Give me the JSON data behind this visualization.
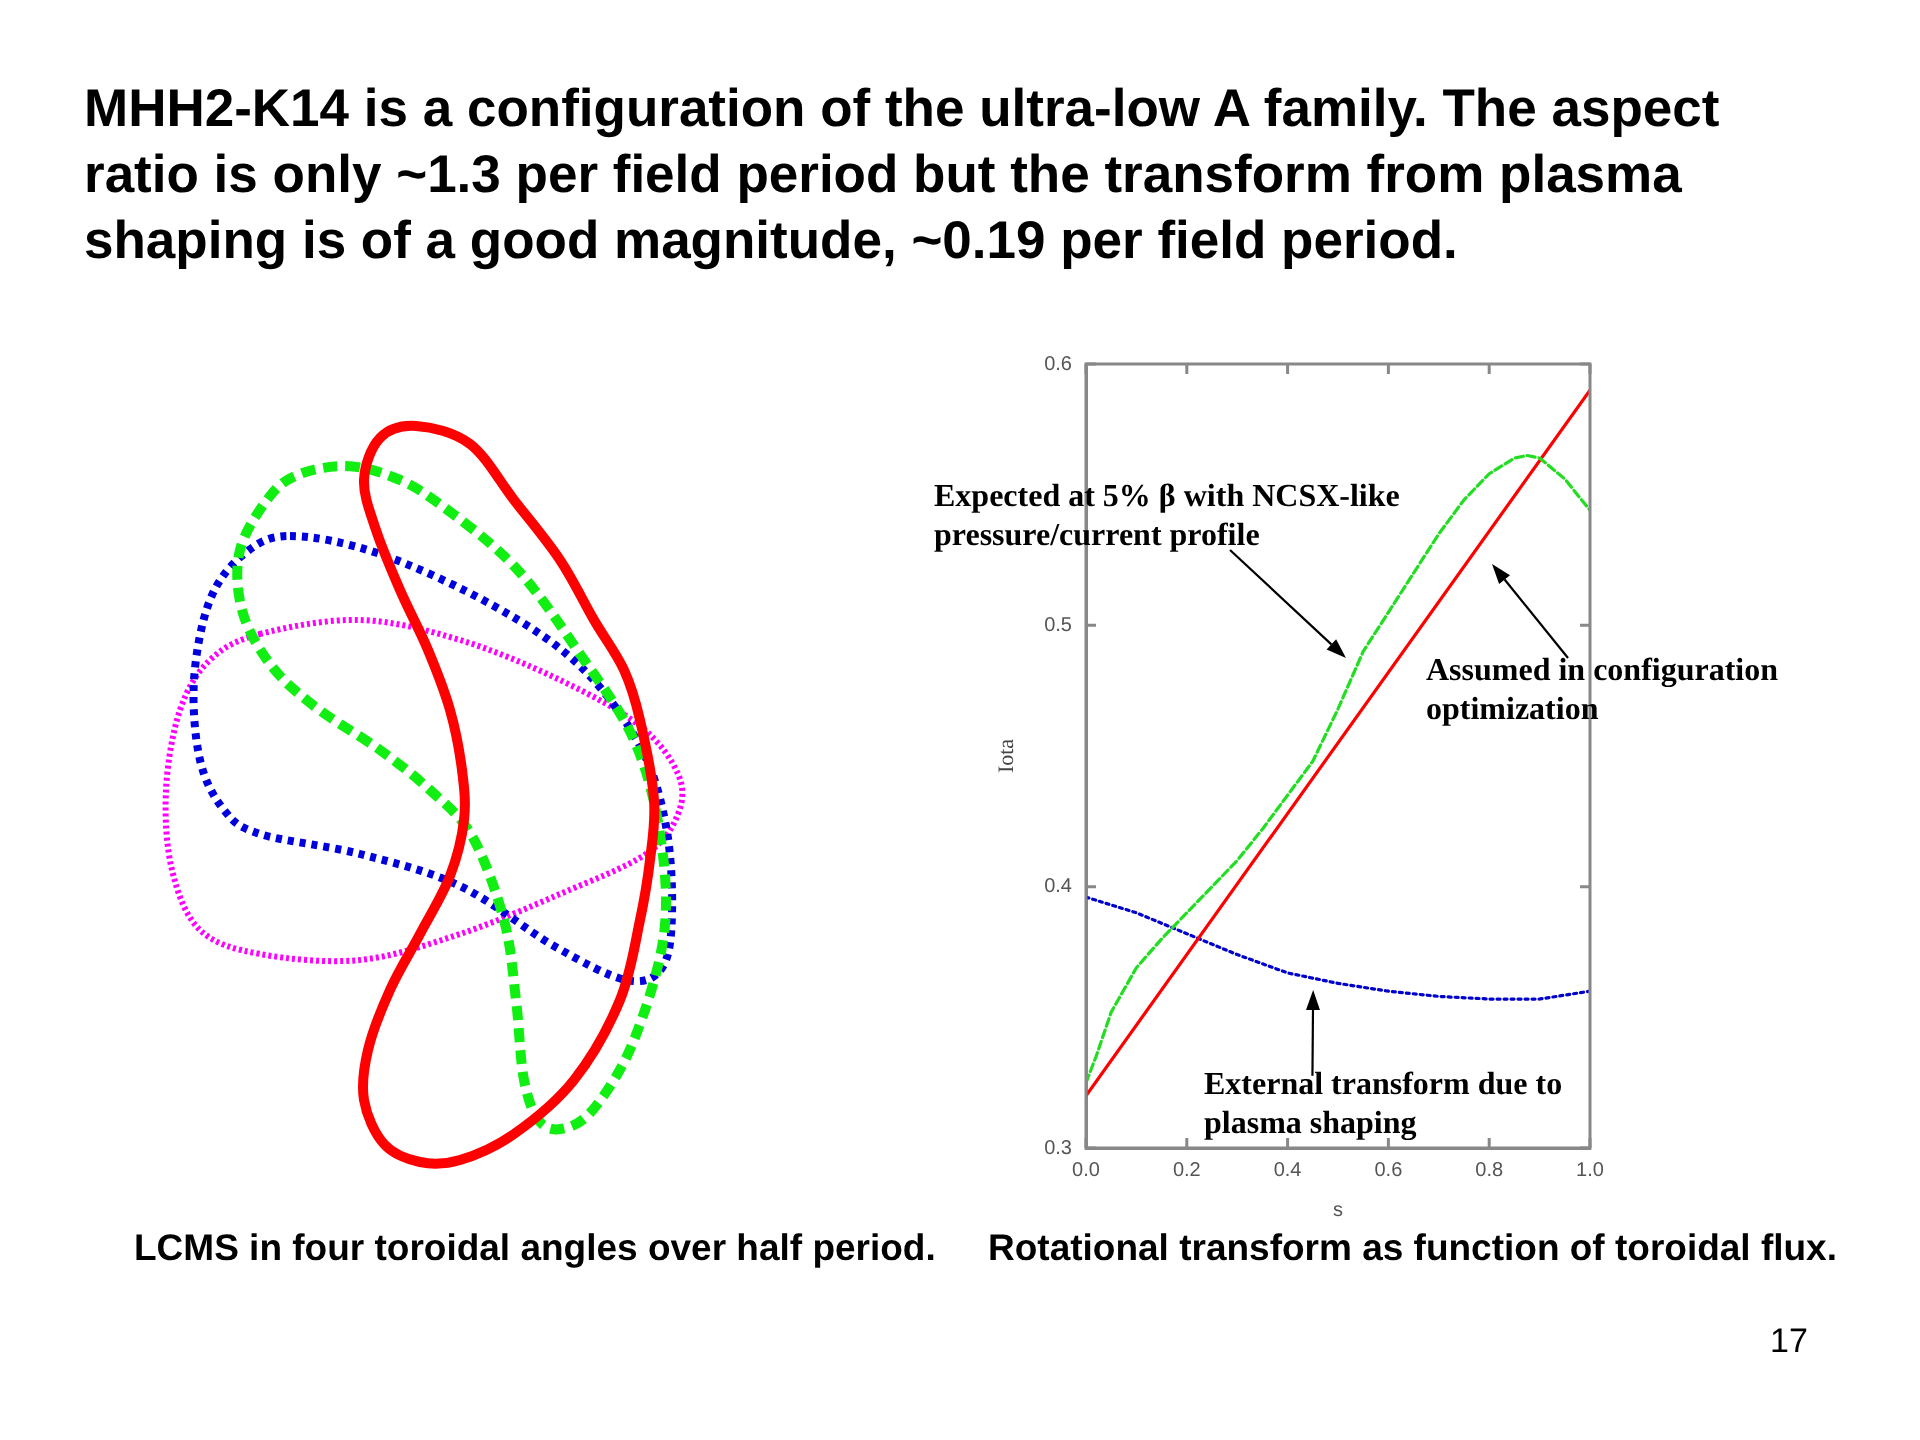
{
  "chart_data": {
    "type": "line",
    "title": "MHH2-K14 is a configuration of the ultra-low A family. The aspect ratio is only ~1.3 per field period but the transform from plasma shaping is of a good magnitude, ~0.19 per field period.",
    "xlabel": "s",
    "ylabel": "Iota",
    "xlim": [
      0,
      1
    ],
    "xticks": [
      {
        "value": 0,
        "label": "0.0"
      },
      0.2,
      0.4,
      0.6,
      0.8,
      {
        "value": 1,
        "label": "1.0"
      }
    ],
    "ylim": [
      0.3,
      0.6
    ],
    "yticks": [
      0.3,
      0.4,
      0.5,
      0.6
    ],
    "marker": "none",
    "series": [
      {
        "color": "#22dd22",
        "line_style": "dashed",
        "x": [
          0,
          0.02,
          0.05,
          0.1,
          0.15,
          0.2,
          0.25,
          0.3,
          0.35,
          0.4,
          0.45,
          0.5,
          0.55,
          0.6,
          0.65,
          0.7,
          0.75,
          0.8,
          0.85,
          0.875,
          0.9,
          0.95,
          1
        ],
        "values": [
          0.325,
          0.335,
          0.352,
          0.369,
          0.38,
          0.39,
          0.4,
          0.41,
          0.422,
          0.435,
          0.448,
          0.468,
          0.49,
          0.505,
          0.52,
          0.535,
          0.548,
          0.558,
          0.564,
          0.565,
          0.564,
          0.556,
          0.544
        ]
      },
      {
        "color": "#ff0000",
        "line_style": "solid",
        "x": [
          0,
          1
        ],
        "values": [
          0.32,
          0.59
        ]
      },
      {
        "color": "#0000cc",
        "line_style": "dotted",
        "x": [
          0,
          0.1,
          0.2,
          0.3,
          0.4,
          0.5,
          0.6,
          0.7,
          0.8,
          0.9,
          1
        ],
        "values": [
          0.396,
          0.39,
          0.382,
          0.374,
          0.367,
          0.363,
          0.36,
          0.358,
          0.357,
          0.357,
          0.36
        ]
      }
    ],
    "annotations": [
      "Expected at 5% β with NCSX-like pressure/current profile",
      "Assumed in configuration optimization",
      {
        "text": "External transform due to plasma shaping",
        "x": 0.45,
        "y": 0.365
      },
      "LCMS in four toroidal angles over half period.",
      "Rotational transform as function of toroidal flux.",
      "17"
    ]
  }
}
